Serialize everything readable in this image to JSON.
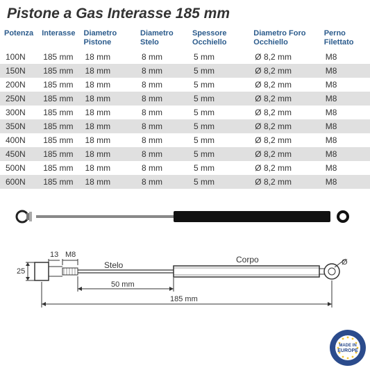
{
  "title": "Pistone a Gas Interasse 185 mm",
  "colors": {
    "header_text": "#2b5b8c",
    "row_alt": "#e0e0e0",
    "row_base": "#ffffff",
    "text": "#333333",
    "background": "#ffffff"
  },
  "columns": [
    "Potenza",
    "Interasse",
    "Diametro Pistone",
    "Diametro Stelo",
    "Spessore Occhiello",
    "Diametro Foro Occhiello",
    "Perno Filettato"
  ],
  "rows": [
    [
      "100N",
      "185 mm",
      "18 mm",
      "8 mm",
      "5 mm",
      "Ø 8,2 mm",
      "M8"
    ],
    [
      "150N",
      "185 mm",
      "18 mm",
      "8 mm",
      "5 mm",
      "Ø 8,2 mm",
      "M8"
    ],
    [
      "200N",
      "185 mm",
      "18 mm",
      "8 mm",
      "5 mm",
      "Ø 8,2 mm",
      "M8"
    ],
    [
      "250N",
      "185 mm",
      "18 mm",
      "8 mm",
      "5 mm",
      "Ø 8,2 mm",
      "M8"
    ],
    [
      "300N",
      "185 mm",
      "18 mm",
      "8 mm",
      "5 mm",
      "Ø 8,2 mm",
      "M8"
    ],
    [
      "350N",
      "185 mm",
      "18 mm",
      "8 mm",
      "5 mm",
      "Ø 8,2 mm",
      "M8"
    ],
    [
      "400N",
      "185 mm",
      "18 mm",
      "8 mm",
      "5 mm",
      "Ø 8,2 mm",
      "M8"
    ],
    [
      "450N",
      "185 mm",
      "18 mm",
      "8 mm",
      "5 mm",
      "Ø 8,2 mm",
      "M8"
    ],
    [
      "500N",
      "185 mm",
      "18 mm",
      "8 mm",
      "5 mm",
      "Ø 8,2 mm",
      "M8"
    ],
    [
      "600N",
      "185 mm",
      "18 mm",
      "8 mm",
      "5 mm",
      "Ø 8,2 mm",
      "M8"
    ]
  ],
  "diagram": {
    "thread_label": "M8",
    "height_label": "25",
    "thickness_label": "13",
    "stelo_label": "Stelo",
    "corpo_label": "Corpo",
    "diam_symbol": "Ø",
    "stroke_dim": "50 mm",
    "total_dim": "185 mm"
  },
  "badge": {
    "line1": "MADE IN",
    "line2": "EUROPE"
  }
}
